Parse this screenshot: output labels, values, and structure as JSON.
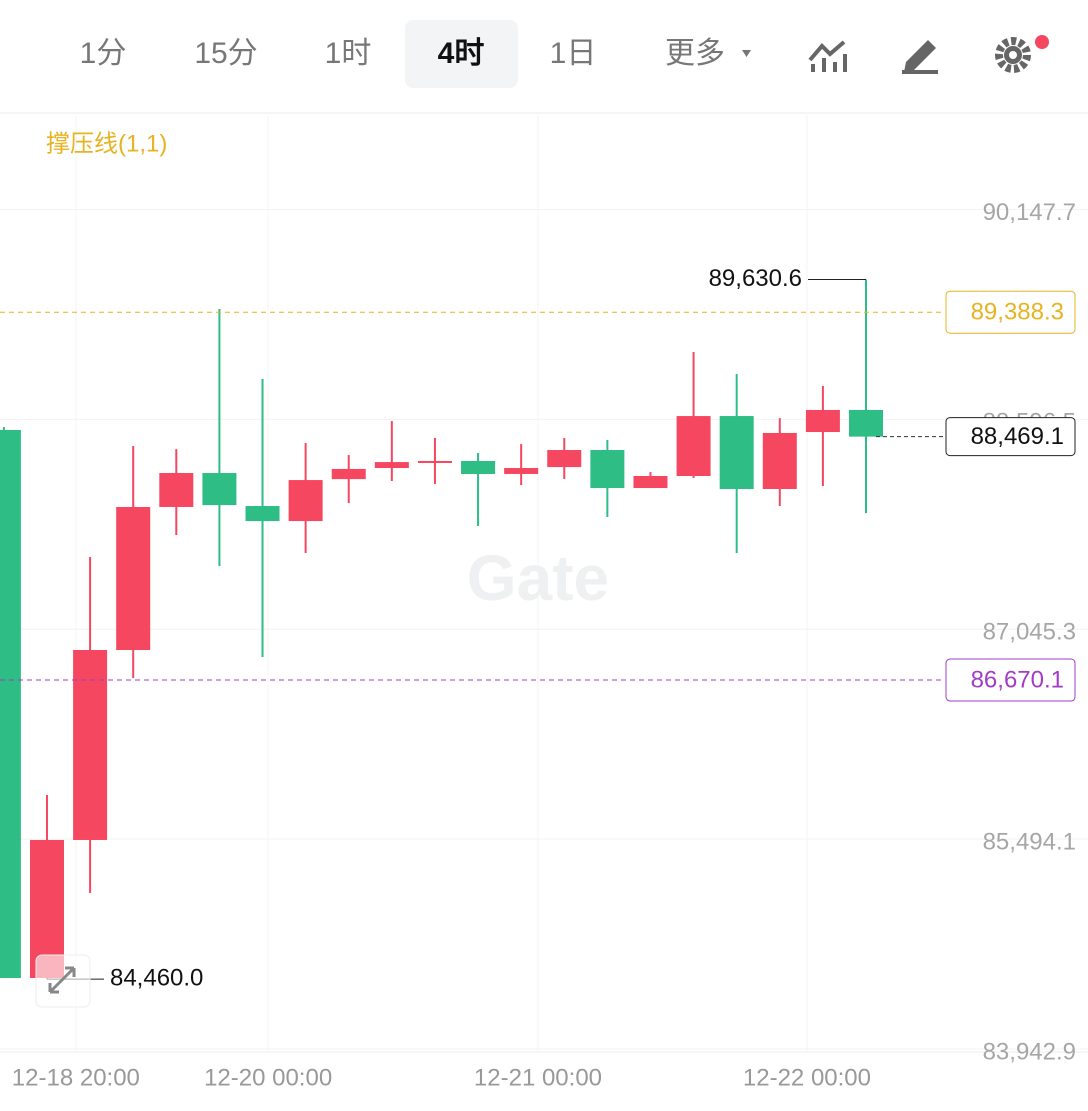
{
  "tabs": [
    "1分",
    "15分",
    "1时",
    "4时",
    "1日",
    "更多"
  ],
  "active_tab_index": 3,
  "chart_data": {
    "type": "candlestick",
    "indicator": "撑压线(1,1)",
    "watermark": "Gate",
    "up_color": "#f5475f",
    "down_color": "#2dbd85",
    "categories": [
      null,
      null,
      null,
      null,
      null,
      null,
      null,
      null,
      null,
      null,
      null,
      null,
      null,
      null,
      null,
      null,
      null,
      null,
      null,
      null,
      null
    ],
    "open": [
      88518,
      84468,
      85488,
      86892,
      87949,
      88200,
      87956,
      87845,
      88155,
      88237,
      88281,
      88289,
      88193,
      88244,
      88370,
      88089,
      88178,
      88621,
      88082,
      88503,
      88666
    ],
    "high": [
      88540,
      85820,
      87579,
      88400,
      88377,
      89412,
      88895,
      88422,
      88333,
      88584,
      88459,
      88348,
      88414,
      88459,
      88444,
      88207,
      89094,
      88932,
      88606,
      88843,
      89630.6
    ],
    "low": [
      84468,
      84460,
      85096,
      86685,
      87742,
      87513,
      86840,
      87609,
      87978,
      88141,
      88119,
      87808,
      88111,
      88156,
      87875,
      88089,
      88163,
      87609,
      87956,
      88104,
      87904
    ],
    "close": [
      84468,
      85488,
      86892,
      87949,
      88200,
      87963,
      87845,
      88148,
      88230,
      88281,
      88289,
      88193,
      88237,
      88370,
      88089,
      88178,
      88621,
      88082,
      88496,
      88666,
      88469.1
    ],
    "ylim": [
      83921,
      90846
    ],
    "yticks": [
      {
        "value": 90147.7,
        "label": "90,147.7"
      },
      {
        "value": 88596.5,
        "label": "88,596.5"
      },
      {
        "value": 87045.3,
        "label": "87,045.3"
      },
      {
        "value": 85494.1,
        "label": "85,494.1"
      },
      {
        "value": 83942.9,
        "label": "83,942.9"
      }
    ],
    "xlim": [
      -0.09,
      25.15
    ],
    "xticks": [
      {
        "value": 1.67,
        "label": "12-18 20:00"
      },
      {
        "value": 6.13,
        "label": "12-20 00:00"
      },
      {
        "value": 12.39,
        "label": "12-21 00:00"
      },
      {
        "value": 18.63,
        "label": "12-22 00:00"
      }
    ],
    "levels": [
      {
        "value": 89388.3,
        "label": "89,388.3",
        "color": "#e6b422"
      },
      {
        "value": 86670.1,
        "label": "86,670.1",
        "color": "#a33cc4"
      }
    ],
    "last_price": {
      "value": 88469.1,
      "label": "88,469.1"
    },
    "high_marker": {
      "value": 89630.6,
      "label": "89,630.6"
    },
    "low_marker": {
      "value": 84460.0,
      "label": "84,460.0"
    },
    "grid": true
  }
}
